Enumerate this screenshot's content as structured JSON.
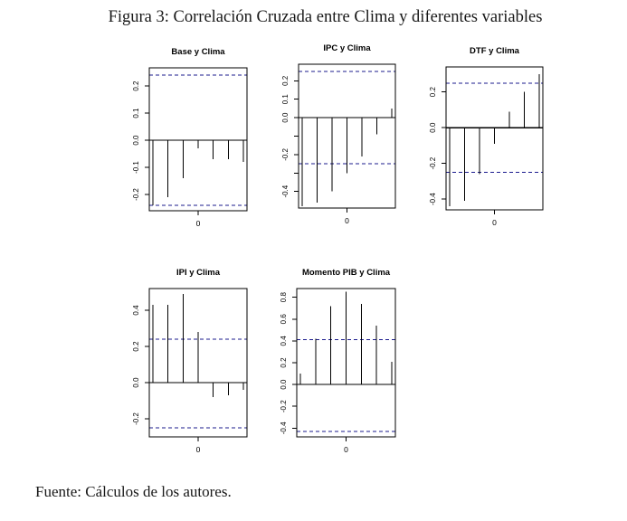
{
  "figure": {
    "title": "Figura 3: Correlación Cruzada entre Clima y diferentes variables",
    "source": "Fuente: Cálculos de los autores.",
    "colors": {
      "axis": "#000000",
      "bars": "#000000",
      "ci_dashed": "#1b1b8e",
      "text": "#181818"
    }
  },
  "chart_data": [
    {
      "type": "bar",
      "title": "Base y Clima",
      "lags": [
        -3,
        -2,
        -1,
        0,
        1,
        2,
        3
      ],
      "values": [
        -0.24,
        -0.21,
        -0.14,
        -0.03,
        -0.07,
        -0.07,
        -0.08
      ],
      "ci_upper": 0.24,
      "ci_lower": -0.24,
      "ylim": [
        -0.26,
        0.267
      ],
      "ytick_values": [
        0.2,
        0.1,
        0.0,
        -0.1,
        -0.2
      ],
      "ytick_labels": [
        "0.2",
        "0.1",
        "0.0",
        "-0.1",
        "-0.2"
      ],
      "xtick_label": "0",
      "grid": false,
      "legend": false
    },
    {
      "type": "bar",
      "title": "IPC y Clima",
      "lags": [
        -3,
        -2,
        -1,
        0,
        1,
        2,
        3
      ],
      "values": [
        -0.48,
        -0.46,
        -0.4,
        -0.3,
        -0.21,
        -0.09,
        0.05
      ],
      "ci_upper": 0.25,
      "ci_lower": -0.25,
      "ylim": [
        -0.49,
        0.29
      ],
      "ytick_values": [
        0.2,
        0.1,
        0.0,
        -0.1,
        -0.2,
        -0.3,
        -0.4
      ],
      "ytick_labels": [
        "0.2",
        "0.1",
        "0.0",
        "",
        "-0.2",
        "",
        "-0.4"
      ],
      "xtick_label": "0",
      "grid": false,
      "legend": false
    },
    {
      "type": "bar",
      "title": "DTF y Clima",
      "lags": [
        -3,
        -2,
        -1,
        0,
        1,
        2,
        3
      ],
      "values": [
        -0.44,
        -0.41,
        -0.26,
        -0.09,
        0.09,
        0.2,
        0.3
      ],
      "ci_upper": 0.25,
      "ci_lower": -0.25,
      "ylim": [
        -0.46,
        0.34
      ],
      "ytick_values": [
        0.2,
        0.0,
        -0.2,
        -0.4
      ],
      "ytick_labels": [
        "0.2",
        "0.0",
        "-0.2",
        "-0.4"
      ],
      "xtick_label": "0",
      "grid": false,
      "legend": false
    },
    {
      "type": "bar",
      "title": "IPI y Clima",
      "lags": [
        -3,
        -2,
        -1,
        0,
        1,
        2,
        3
      ],
      "values": [
        0.43,
        0.43,
        0.49,
        0.28,
        -0.08,
        -0.07,
        -0.04
      ],
      "ci_upper": 0.24,
      "ci_lower": -0.25,
      "ylim": [
        -0.3,
        0.52
      ],
      "ytick_values": [
        0.4,
        0.2,
        0.0,
        -0.2
      ],
      "ytick_labels": [
        "0.4",
        "0.2",
        "0.0",
        "-0.2"
      ],
      "xtick_label": "0",
      "grid": false,
      "legend": false
    },
    {
      "type": "bar",
      "title": "Momento PIB y Clima",
      "lags": [
        -3,
        -2,
        -1,
        0,
        1,
        2,
        3
      ],
      "values": [
        0.1,
        0.42,
        0.72,
        0.85,
        0.74,
        0.54,
        0.21
      ],
      "ci_upper": 0.41,
      "ci_lower": -0.43,
      "ylim": [
        -0.48,
        0.88
      ],
      "ytick_values": [
        0.8,
        0.6,
        0.4,
        0.2,
        0.0,
        -0.2,
        -0.4
      ],
      "ytick_labels": [
        "0.8",
        "0.6",
        "0.4",
        "0.2",
        "0.0",
        "-0.2",
        "-0.4"
      ],
      "xtick_label": "0",
      "grid": false,
      "legend": false
    }
  ]
}
